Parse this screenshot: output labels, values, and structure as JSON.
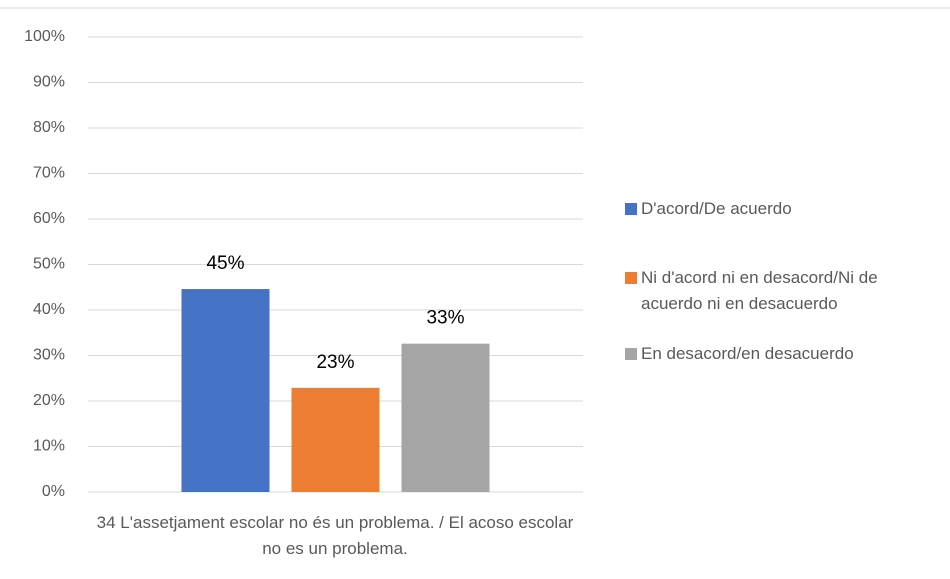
{
  "chart_data": {
    "type": "bar",
    "categories": [
      "34 L'assetjament escolar no és un problema.  / El acoso escolar no es un problema."
    ],
    "series": [
      {
        "name": "D'acord/De acuerdo",
        "color": "#4472c4",
        "values": [
          44.6
        ],
        "value_labels": [
          "45%"
        ]
      },
      {
        "name": "Ni d'acord ni en desacord/Ni de acuerdo ni en desacuerdo",
        "color": "#ed7d31",
        "values": [
          22.9
        ],
        "value_labels": [
          "23%"
        ]
      },
      {
        "name": "En desacord/en desacuerdo",
        "color": "#a5a5a5",
        "values": [
          32.6
        ],
        "value_labels": [
          "33%"
        ]
      }
    ],
    "ylim": [
      0,
      100
    ],
    "yticks": [
      {
        "value": 0,
        "label": "0%"
      },
      {
        "value": 10,
        "label": "10%"
      },
      {
        "value": 20,
        "label": "20%"
      },
      {
        "value": 30,
        "label": "30%"
      },
      {
        "value": 40,
        "label": "40%"
      },
      {
        "value": 50,
        "label": "50%"
      },
      {
        "value": 60,
        "label": "60%"
      },
      {
        "value": 70,
        "label": "70%"
      },
      {
        "value": 80,
        "label": "80%"
      },
      {
        "value": 90,
        "label": "90%"
      },
      {
        "value": 100,
        "label": "100%"
      }
    ],
    "grid": true,
    "legend": "right"
  }
}
